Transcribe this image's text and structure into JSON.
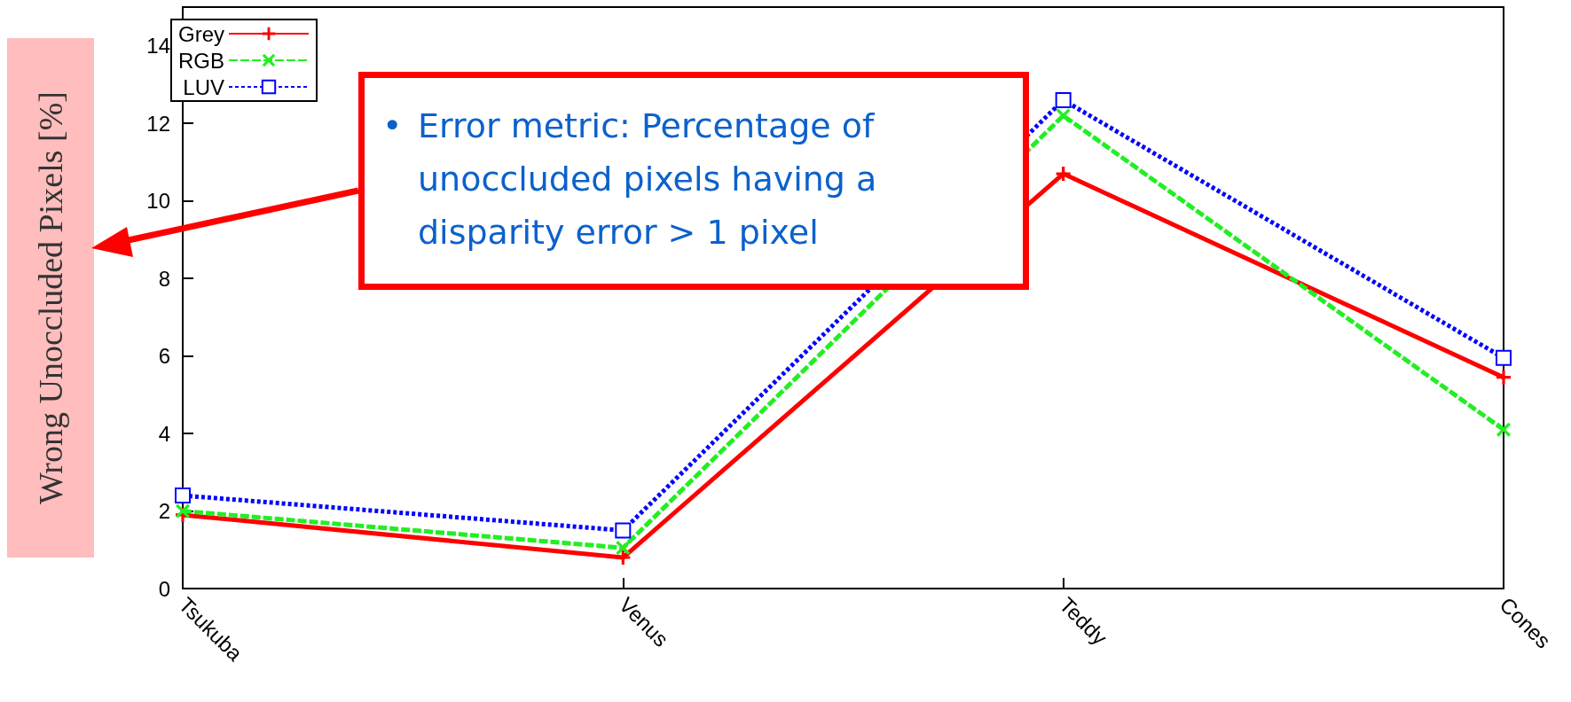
{
  "chart_data": {
    "type": "line",
    "ylabel": "Wrong Unoccluded Pixels [%]",
    "categories": [
      "Tsukuba",
      "Venus",
      "Teddy",
      "Cones"
    ],
    "series": [
      {
        "name": "Grey",
        "color": "#ff0000",
        "values": [
          1.9,
          0.8,
          10.7,
          5.45
        ],
        "marker": "cross",
        "line_style": "solid"
      },
      {
        "name": "RGB",
        "color": "#22ee22",
        "values": [
          2.0,
          1.05,
          12.2,
          4.1
        ],
        "marker": "x",
        "line_style": "dashed"
      },
      {
        "name": "LUV",
        "color": "#0000ff",
        "values": [
          2.4,
          1.5,
          12.6,
          5.95
        ],
        "marker": "square",
        "line_style": "dotted"
      }
    ],
    "ylim": [
      0,
      15
    ],
    "yticks": [
      0,
      2,
      4,
      6,
      8,
      10,
      12,
      14
    ],
    "grid": false,
    "legend": "top left",
    "annotations": [
      "•\tError metric: Percentage of unoccluded pixels having a disparity error > 1 pixel"
    ]
  }
}
